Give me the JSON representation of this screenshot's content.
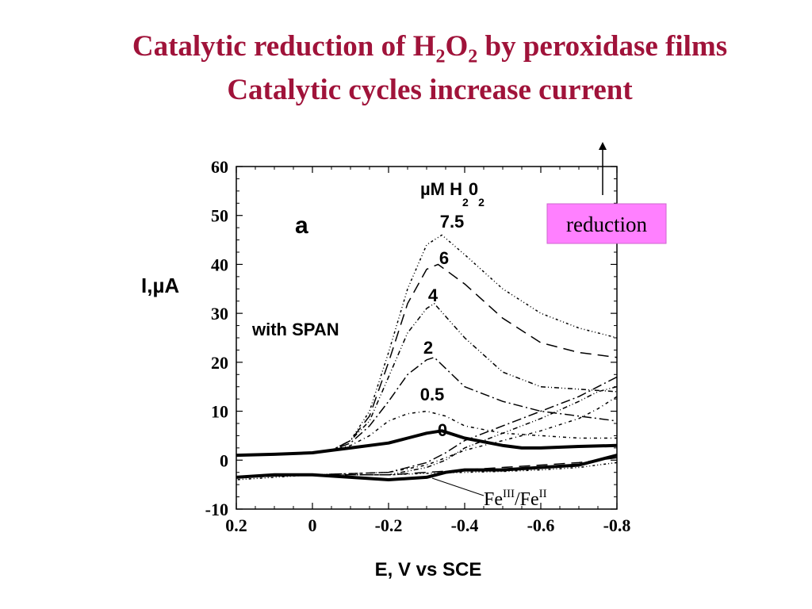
{
  "slide": {
    "title_line1_pre": "Catalytic reduction of H",
    "title_line1_sub1": "2",
    "title_line1_mid": "O",
    "title_line1_sub2": "2",
    "title_line1_post": " by peroxidase films",
    "title_line2": "Catalytic cycles increase current"
  },
  "chart_data": {
    "type": "line",
    "title": "",
    "xlabel": "E, V vs SCE",
    "ylabel": "I,µA",
    "xlim": [
      0.2,
      -0.8
    ],
    "ylim": [
      -10,
      60
    ],
    "x_ticks": [
      "0.2",
      "0",
      "-0.2",
      "-0.4",
      "-0.6",
      "-0.8"
    ],
    "y_ticks": [
      "60",
      "50",
      "40",
      "30",
      "20",
      "10",
      "0",
      "-10"
    ],
    "panel_label": "a",
    "condition_label": "with SPAN",
    "legend_title": "µM H",
    "legend_title_sub1": "2",
    "legend_title_mid": "0",
    "legend_title_sub2": "2",
    "reduction_label": "reduction",
    "reduction_label_color": "#ff80ff",
    "redox_label": {
      "pre": "Fe",
      "sup1": "III",
      "mid": "/Fe",
      "sup2": "II"
    },
    "series": [
      {
        "name": "7.5",
        "forward": [
          [
            0.2,
            1
          ],
          [
            0.1,
            1.2
          ],
          [
            0,
            1.5
          ],
          [
            -0.05,
            2
          ],
          [
            -0.1,
            4
          ],
          [
            -0.15,
            10
          ],
          [
            -0.2,
            22
          ],
          [
            -0.25,
            35
          ],
          [
            -0.3,
            44
          ],
          [
            -0.34,
            46
          ],
          [
            -0.4,
            42
          ],
          [
            -0.5,
            35
          ],
          [
            -0.6,
            30
          ],
          [
            -0.7,
            27
          ],
          [
            -0.8,
            25
          ]
        ],
        "reverse": [
          [
            -0.8,
            -0.5
          ],
          [
            -0.7,
            -1.5
          ],
          [
            -0.6,
            -2
          ],
          [
            -0.5,
            -2.3
          ],
          [
            -0.4,
            -2.5
          ],
          [
            -0.3,
            -2.7
          ],
          [
            -0.2,
            -3
          ],
          [
            0,
            -3
          ],
          [
            0.2,
            -4
          ]
        ]
      },
      {
        "name": "6",
        "forward": [
          [
            0.2,
            1
          ],
          [
            0.1,
            1.2
          ],
          [
            0,
            1.5
          ],
          [
            -0.05,
            2
          ],
          [
            -0.1,
            4
          ],
          [
            -0.15,
            9
          ],
          [
            -0.2,
            20
          ],
          [
            -0.25,
            32
          ],
          [
            -0.3,
            39
          ],
          [
            -0.33,
            40
          ],
          [
            -0.4,
            36
          ],
          [
            -0.5,
            29
          ],
          [
            -0.6,
            24
          ],
          [
            -0.7,
            22
          ],
          [
            -0.8,
            21
          ]
        ],
        "reverse": [
          [
            -0.8,
            0.5
          ],
          [
            -0.7,
            -0.5
          ],
          [
            -0.6,
            -1
          ],
          [
            -0.5,
            -1.5
          ],
          [
            -0.4,
            -2
          ],
          [
            -0.3,
            -2.5
          ],
          [
            -0.2,
            -3
          ],
          [
            0,
            -3
          ],
          [
            0.2,
            -3.5
          ]
        ]
      },
      {
        "name": "4",
        "forward": [
          [
            0.2,
            1
          ],
          [
            0.1,
            1.2
          ],
          [
            0,
            1.5
          ],
          [
            -0.05,
            2
          ],
          [
            -0.1,
            4
          ],
          [
            -0.15,
            8
          ],
          [
            -0.2,
            17
          ],
          [
            -0.25,
            26
          ],
          [
            -0.3,
            31
          ],
          [
            -0.32,
            32
          ],
          [
            -0.4,
            25
          ],
          [
            -0.5,
            18
          ],
          [
            -0.6,
            15
          ],
          [
            -0.7,
            14.5
          ],
          [
            -0.8,
            14
          ]
        ],
        "reverse": [
          [
            -0.8,
            15
          ],
          [
            -0.75,
            14
          ],
          [
            -0.7,
            12
          ],
          [
            -0.6,
            8.5
          ],
          [
            -0.5,
            5.5
          ],
          [
            -0.4,
            2.5
          ],
          [
            -0.35,
            0
          ],
          [
            -0.3,
            -1.5
          ],
          [
            -0.2,
            -3
          ],
          [
            0,
            -3
          ],
          [
            0.2,
            -3.5
          ]
        ]
      },
      {
        "name": "2",
        "forward": [
          [
            0.2,
            1
          ],
          [
            0.1,
            1.2
          ],
          [
            0,
            1.5
          ],
          [
            -0.05,
            2
          ],
          [
            -0.1,
            3.5
          ],
          [
            -0.15,
            7
          ],
          [
            -0.2,
            12
          ],
          [
            -0.25,
            17.5
          ],
          [
            -0.3,
            20.5
          ],
          [
            -0.32,
            21
          ],
          [
            -0.4,
            15
          ],
          [
            -0.5,
            12
          ],
          [
            -0.6,
            10
          ],
          [
            -0.7,
            9
          ],
          [
            -0.8,
            8
          ]
        ],
        "reverse": [
          [
            -0.8,
            17
          ],
          [
            -0.75,
            15
          ],
          [
            -0.7,
            13
          ],
          [
            -0.6,
            10
          ],
          [
            -0.5,
            7
          ],
          [
            -0.4,
            4
          ],
          [
            -0.35,
            1.5
          ],
          [
            -0.3,
            -0.5
          ],
          [
            -0.2,
            -2.5
          ],
          [
            0,
            -3
          ],
          [
            0.2,
            -3.5
          ]
        ]
      },
      {
        "name": "0.5",
        "forward": [
          [
            0.2,
            1
          ],
          [
            0.1,
            1.2
          ],
          [
            0,
            1.5
          ],
          [
            -0.05,
            2
          ],
          [
            -0.1,
            3
          ],
          [
            -0.15,
            5
          ],
          [
            -0.2,
            8
          ],
          [
            -0.25,
            9.5
          ],
          [
            -0.3,
            10
          ],
          [
            -0.35,
            9
          ],
          [
            -0.4,
            7
          ],
          [
            -0.5,
            5.5
          ],
          [
            -0.6,
            5
          ],
          [
            -0.7,
            4.5
          ],
          [
            -0.8,
            4.5
          ]
        ],
        "reverse": [
          [
            -0.8,
            13
          ],
          [
            -0.75,
            10.5
          ],
          [
            -0.7,
            8.5
          ],
          [
            -0.6,
            6
          ],
          [
            -0.5,
            4
          ],
          [
            -0.4,
            2
          ],
          [
            -0.35,
            0.5
          ],
          [
            -0.3,
            -1
          ],
          [
            -0.2,
            -2.5
          ],
          [
            0,
            -3
          ],
          [
            0.2,
            -3.5
          ]
        ]
      },
      {
        "name": "0",
        "forward": [
          [
            0.2,
            1
          ],
          [
            0.1,
            1.2
          ],
          [
            0,
            1.5
          ],
          [
            -0.05,
            2
          ],
          [
            -0.1,
            2.5
          ],
          [
            -0.2,
            3.5
          ],
          [
            -0.25,
            4.5
          ],
          [
            -0.3,
            5.5
          ],
          [
            -0.34,
            6
          ],
          [
            -0.4,
            4.5
          ],
          [
            -0.5,
            3
          ],
          [
            -0.55,
            2.5
          ],
          [
            -0.6,
            2.5
          ],
          [
            -0.7,
            2.8
          ],
          [
            -0.8,
            3
          ]
        ],
        "reverse": [
          [
            -0.8,
            1
          ],
          [
            -0.75,
            0
          ],
          [
            -0.7,
            -1
          ],
          [
            -0.6,
            -1.5
          ],
          [
            -0.5,
            -2
          ],
          [
            -0.4,
            -2
          ],
          [
            -0.35,
            -2.5
          ],
          [
            -0.3,
            -3.5
          ],
          [
            -0.2,
            -4
          ],
          [
            -0.1,
            -3.5
          ],
          [
            0,
            -3
          ],
          [
            0.1,
            -3
          ],
          [
            0.2,
            -3.5
          ]
        ]
      }
    ]
  }
}
